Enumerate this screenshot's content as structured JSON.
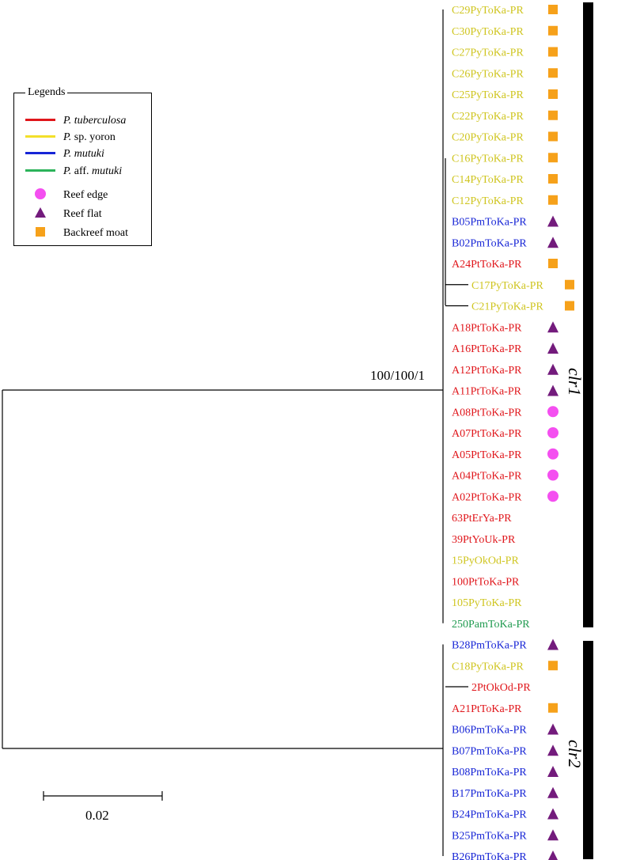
{
  "legend": {
    "title": "Legends",
    "species": [
      {
        "genus": "P.",
        "epithet": "tuberculosa",
        "color": "#e0161b"
      },
      {
        "genus": "P.",
        "epithet": "sp. yoron",
        "color": "#f3e02a",
        "epithet_italic": false
      },
      {
        "genus": "P.",
        "epithet": "mutuki",
        "color": "#1725d6"
      },
      {
        "genus": "P.",
        "epithet": "aff. mutuki",
        "color": "#2cb35a",
        "prefix": "aff."
      }
    ],
    "habitats": [
      {
        "label": "Reef edge",
        "shape": "circle",
        "color": "#f44ff0"
      },
      {
        "label": "Reef flat",
        "shape": "triangle",
        "color": "#731b7c"
      },
      {
        "label": "Backreef moat",
        "shape": "square",
        "color": "#f6a11a"
      }
    ]
  },
  "node_support": "100/100/1",
  "clades": [
    {
      "label": "clr1",
      "range": [
        0,
        29
      ]
    },
    {
      "label": "clr2",
      "range": [
        30,
        40
      ]
    }
  ],
  "scale_bar": {
    "label": "0.02"
  },
  "leaves": [
    {
      "name": "C29PyToKa-PR",
      "species": "yoron",
      "habitat": "square",
      "offset": false
    },
    {
      "name": "C30PyToKa-PR",
      "species": "yoron",
      "habitat": "square",
      "offset": false
    },
    {
      "name": "C27PyToKa-PR",
      "species": "yoron",
      "habitat": "square",
      "offset": false
    },
    {
      "name": "C26PyToKa-PR",
      "species": "yoron",
      "habitat": "square",
      "offset": false
    },
    {
      "name": "C25PyToKa-PR",
      "species": "yoron",
      "habitat": "square",
      "offset": false
    },
    {
      "name": "C22PyToKa-PR",
      "species": "yoron",
      "habitat": "square",
      "offset": false
    },
    {
      "name": "C20PyToKa-PR",
      "species": "yoron",
      "habitat": "square",
      "offset": false
    },
    {
      "name": "C16PyToKa-PR",
      "species": "yoron",
      "habitat": "square",
      "offset": false
    },
    {
      "name": "C14PyToKa-PR",
      "species": "yoron",
      "habitat": "square",
      "offset": false
    },
    {
      "name": "C12PyToKa-PR",
      "species": "yoron",
      "habitat": "square",
      "offset": false
    },
    {
      "name": "B05PmToKa-PR",
      "species": "mutuki",
      "habitat": "triangle",
      "offset": false
    },
    {
      "name": "B02PmToKa-PR",
      "species": "mutuki",
      "habitat": "triangle",
      "offset": false
    },
    {
      "name": "A24PtToKa-PR",
      "species": "tuberculosa",
      "habitat": "square",
      "offset": false
    },
    {
      "name": "C17PyToKa-PR",
      "species": "yoron",
      "habitat": "square",
      "offset": true
    },
    {
      "name": "C21PyToKa-PR",
      "species": "yoron",
      "habitat": "square",
      "offset": true
    },
    {
      "name": "A18PtToKa-PR",
      "species": "tuberculosa",
      "habitat": "triangle",
      "offset": false
    },
    {
      "name": "A16PtToKa-PR",
      "species": "tuberculosa",
      "habitat": "triangle",
      "offset": false
    },
    {
      "name": "A12PtToKa-PR",
      "species": "tuberculosa",
      "habitat": "triangle",
      "offset": false
    },
    {
      "name": "A11PtToKa-PR",
      "species": "tuberculosa",
      "habitat": "triangle",
      "offset": false
    },
    {
      "name": "A08PtToKa-PR",
      "species": "tuberculosa",
      "habitat": "circle",
      "offset": false
    },
    {
      "name": "A07PtToKa-PR",
      "species": "tuberculosa",
      "habitat": "circle",
      "offset": false
    },
    {
      "name": "A05PtToKa-PR",
      "species": "tuberculosa",
      "habitat": "circle",
      "offset": false
    },
    {
      "name": "A04PtToKa-PR",
      "species": "tuberculosa",
      "habitat": "circle",
      "offset": false
    },
    {
      "name": "A02PtToKa-PR",
      "species": "tuberculosa",
      "habitat": "circle",
      "offset": false
    },
    {
      "name": "63PtErYa-PR",
      "species": "tuberculosa",
      "habitat": "",
      "offset": false
    },
    {
      "name": "39PtYoUk-PR",
      "species": "tuberculosa",
      "habitat": "",
      "offset": false
    },
    {
      "name": "15PyOkOd-PR",
      "species": "yoron",
      "habitat": "",
      "offset": false
    },
    {
      "name": "100PtToKa-PR",
      "species": "tuberculosa",
      "habitat": "",
      "offset": false
    },
    {
      "name": "105PyToKa-PR",
      "species": "yoron",
      "habitat": "",
      "offset": false
    },
    {
      "name": "250PamToKa-PR",
      "species": "affmutuki",
      "habitat": "",
      "offset": false
    },
    {
      "name": "B28PmToKa-PR",
      "species": "mutuki",
      "habitat": "triangle",
      "offset": false
    },
    {
      "name": "C18PyToKa-PR",
      "species": "yoron",
      "habitat": "square",
      "offset": false
    },
    {
      "name": "2PtOkOd-PR",
      "species": "tuberculosa",
      "habitat": "",
      "offset": true
    },
    {
      "name": "A21PtToKa-PR",
      "species": "tuberculosa",
      "habitat": "square",
      "offset": false
    },
    {
      "name": "B06PmToKa-PR",
      "species": "mutuki",
      "habitat": "triangle",
      "offset": false
    },
    {
      "name": "B07PmToKa-PR",
      "species": "mutuki",
      "habitat": "triangle",
      "offset": false
    },
    {
      "name": "B08PmToKa-PR",
      "species": "mutuki",
      "habitat": "triangle",
      "offset": false
    },
    {
      "name": "B17PmToKa-PR",
      "species": "mutuki",
      "habitat": "triangle",
      "offset": false
    },
    {
      "name": "B24PmToKa-PR",
      "species": "mutuki",
      "habitat": "triangle",
      "offset": false
    },
    {
      "name": "B25PmToKa-PR",
      "species": "mutuki",
      "habitat": "triangle",
      "offset": false
    },
    {
      "name": "B26PmToKa-PR",
      "species": "mutuki",
      "habitat": "triangle",
      "offset": false
    }
  ],
  "species_colors": {
    "tuberculosa": "#e0161b",
    "yoron": "#cfc51f",
    "mutuki": "#1725d6",
    "affmutuki": "#1f9a4f"
  },
  "habitat_colors": {
    "circle": "#f44ff0",
    "triangle": "#731b7c",
    "square": "#f6a11a"
  }
}
